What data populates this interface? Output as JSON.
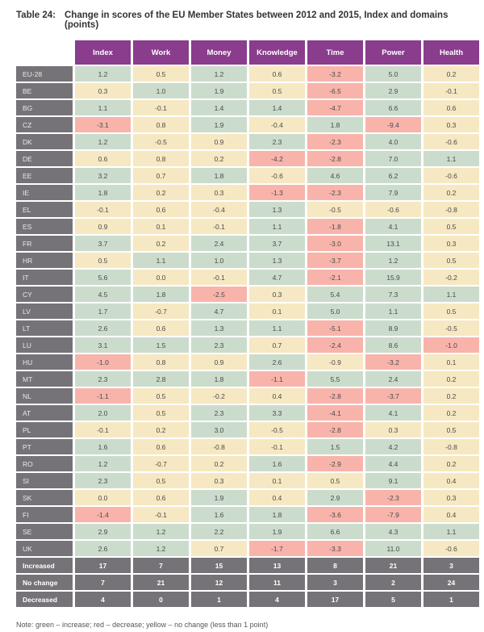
{
  "title": {
    "prefix": "Table 24:",
    "text": "Change in scores of the EU Member States between 2012 and 2015, Index and domains (points)"
  },
  "note": "Note: green – increase; red – decrease; yellow – no change (less than 1 point)",
  "legend": {
    "header_color": "#8a3c8d",
    "label_color": "#757378",
    "increase_color": "#cbdccd",
    "nochange_color": "#f6e8c2",
    "decrease_color": "#f8b4ab",
    "color_key": {
      "g": "increase (green)",
      "y": "no change (yellow)",
      "r": "decrease (red)"
    }
  },
  "chart_data": {
    "type": "table",
    "columns": [
      "Index",
      "Work",
      "Money",
      "Knowledge",
      "Time",
      "Power",
      "Health"
    ],
    "rows": [
      {
        "label": "EU-28",
        "values": [
          "1.2",
          "0.5",
          "1.2",
          "0.6",
          "-3.2",
          "5.0",
          "0.2"
        ],
        "colors": [
          "g",
          "y",
          "g",
          "y",
          "r",
          "g",
          "y"
        ]
      },
      {
        "label": "BE",
        "values": [
          "0.3",
          "1.0",
          "1.9",
          "0.5",
          "-6.5",
          "2.9",
          "-0.1"
        ],
        "colors": [
          "y",
          "g",
          "g",
          "y",
          "r",
          "g",
          "y"
        ]
      },
      {
        "label": "BG",
        "values": [
          "1.1",
          "-0.1",
          "1.4",
          "1.4",
          "-4.7",
          "6.6",
          "0.6"
        ],
        "colors": [
          "g",
          "y",
          "g",
          "g",
          "r",
          "g",
          "y"
        ]
      },
      {
        "label": "CZ",
        "values": [
          "-3.1",
          "0.8",
          "1.9",
          "-0.4",
          "1.8",
          "-9.4",
          "0.3"
        ],
        "colors": [
          "r",
          "y",
          "g",
          "y",
          "g",
          "r",
          "y"
        ]
      },
      {
        "label": "DK",
        "values": [
          "1.2",
          "-0.5",
          "0.9",
          "2.3",
          "-2.3",
          "4.0",
          "-0.6"
        ],
        "colors": [
          "g",
          "y",
          "y",
          "g",
          "r",
          "g",
          "y"
        ]
      },
      {
        "label": "DE",
        "values": [
          "0.6",
          "0.8",
          "0.2",
          "-4.2",
          "-2.8",
          "7.0",
          "1.1"
        ],
        "colors": [
          "y",
          "y",
          "y",
          "r",
          "r",
          "g",
          "g"
        ]
      },
      {
        "label": "EE",
        "values": [
          "3.2",
          "0.7",
          "1.8",
          "-0.6",
          "4.6",
          "6.2",
          "-0.6"
        ],
        "colors": [
          "g",
          "y",
          "g",
          "y",
          "g",
          "g",
          "y"
        ]
      },
      {
        "label": "IE",
        "values": [
          "1.8",
          "0.2",
          "0.3",
          "-1.3",
          "-2.3",
          "7.9",
          "0.2"
        ],
        "colors": [
          "g",
          "y",
          "y",
          "r",
          "r",
          "g",
          "y"
        ]
      },
      {
        "label": "EL",
        "values": [
          "-0.1",
          "0.6",
          "-0.4",
          "1.3",
          "-0.5",
          "-0.6",
          "-0.8"
        ],
        "colors": [
          "y",
          "y",
          "y",
          "g",
          "y",
          "y",
          "y"
        ]
      },
      {
        "label": "ES",
        "values": [
          "0.9",
          "0.1",
          "-0.1",
          "1.1",
          "-1.8",
          "4.1",
          "0.5"
        ],
        "colors": [
          "y",
          "y",
          "y",
          "g",
          "r",
          "g",
          "y"
        ]
      },
      {
        "label": "FR",
        "values": [
          "3.7",
          "0.2",
          "2.4",
          "3.7",
          "-3.0",
          "13.1",
          "0.3"
        ],
        "colors": [
          "g",
          "y",
          "g",
          "g",
          "r",
          "g",
          "y"
        ]
      },
      {
        "label": "HR",
        "values": [
          "0.5",
          "1.1",
          "1.0",
          "1.3",
          "-3.7",
          "1.2",
          "0.5"
        ],
        "colors": [
          "y",
          "g",
          "g",
          "g",
          "r",
          "g",
          "y"
        ]
      },
      {
        "label": "IT",
        "values": [
          "5.6",
          "0.0",
          "-0.1",
          "4.7",
          "-2.1",
          "15.9",
          "-0.2"
        ],
        "colors": [
          "g",
          "y",
          "y",
          "g",
          "r",
          "g",
          "y"
        ]
      },
      {
        "label": "CY",
        "values": [
          "4.5",
          "1.8",
          "-2.5",
          "0.3",
          "5.4",
          "7.3",
          "1.1"
        ],
        "colors": [
          "g",
          "g",
          "r",
          "y",
          "g",
          "g",
          "g"
        ]
      },
      {
        "label": "LV",
        "values": [
          "1.7",
          "-0.7",
          "4.7",
          "0.1",
          "5.0",
          "1.1",
          "0.5"
        ],
        "colors": [
          "g",
          "y",
          "g",
          "y",
          "g",
          "g",
          "y"
        ]
      },
      {
        "label": "LT",
        "values": [
          "2.6",
          "0.6",
          "1.3",
          "1.1",
          "-5.1",
          "8.9",
          "-0.5"
        ],
        "colors": [
          "g",
          "y",
          "g",
          "g",
          "r",
          "g",
          "y"
        ]
      },
      {
        "label": "LU",
        "values": [
          "3.1",
          "1.5",
          "2.3",
          "0.7",
          "-2.4",
          "8.6",
          "-1.0"
        ],
        "colors": [
          "g",
          "g",
          "g",
          "y",
          "r",
          "g",
          "r"
        ]
      },
      {
        "label": "HU",
        "values": [
          "-1.0",
          "0.8",
          "0.9",
          "2.6",
          "-0.9",
          "-3.2",
          "0.1"
        ],
        "colors": [
          "r",
          "y",
          "y",
          "g",
          "y",
          "r",
          "y"
        ]
      },
      {
        "label": "MT",
        "values": [
          "2.3",
          "2.8",
          "1.8",
          "-1.1",
          "5.5",
          "2.4",
          "0.2"
        ],
        "colors": [
          "g",
          "g",
          "g",
          "r",
          "g",
          "g",
          "y"
        ]
      },
      {
        "label": "NL",
        "values": [
          "-1.1",
          "0.5",
          "-0.2",
          "0.4",
          "-2.8",
          "-3.7",
          "0.2"
        ],
        "colors": [
          "r",
          "y",
          "y",
          "y",
          "r",
          "r",
          "y"
        ]
      },
      {
        "label": "AT",
        "values": [
          "2.0",
          "0.5",
          "2.3",
          "3.3",
          "-4.1",
          "4.1",
          "0.2"
        ],
        "colors": [
          "g",
          "y",
          "g",
          "g",
          "r",
          "g",
          "y"
        ]
      },
      {
        "label": "PL",
        "values": [
          "-0.1",
          "0.2",
          "3.0",
          "-0.5",
          "-2.8",
          "0.3",
          "0.5"
        ],
        "colors": [
          "y",
          "y",
          "g",
          "y",
          "r",
          "y",
          "y"
        ]
      },
      {
        "label": "PT",
        "values": [
          "1.6",
          "0.6",
          "-0.8",
          "-0.1",
          "1.5",
          "4.2",
          "-0.8"
        ],
        "colors": [
          "g",
          "y",
          "y",
          "y",
          "g",
          "g",
          "y"
        ]
      },
      {
        "label": "RO",
        "values": [
          "1.2",
          "-0.7",
          "0.2",
          "1.6",
          "-2.9",
          "4.4",
          "0.2"
        ],
        "colors": [
          "g",
          "y",
          "y",
          "g",
          "r",
          "g",
          "y"
        ]
      },
      {
        "label": "SI",
        "values": [
          "2.3",
          "0.5",
          "0.3",
          "0.1",
          "0.5",
          "9.1",
          "0.4"
        ],
        "colors": [
          "g",
          "y",
          "y",
          "y",
          "y",
          "g",
          "y"
        ]
      },
      {
        "label": "SK",
        "values": [
          "0.0",
          "0.6",
          "1.9",
          "0.4",
          "2.9",
          "-2.3",
          "0.3"
        ],
        "colors": [
          "y",
          "y",
          "g",
          "y",
          "g",
          "r",
          "y"
        ]
      },
      {
        "label": "FI",
        "values": [
          "-1.4",
          "-0.1",
          "1.6",
          "1.8",
          "-3.6",
          "-7.9",
          "0.4"
        ],
        "colors": [
          "r",
          "y",
          "g",
          "g",
          "r",
          "r",
          "y"
        ]
      },
      {
        "label": "SE",
        "values": [
          "2.9",
          "1.2",
          "2.2",
          "1.9",
          "6.6",
          "4.3",
          "1.1"
        ],
        "colors": [
          "g",
          "g",
          "g",
          "g",
          "g",
          "g",
          "g"
        ]
      },
      {
        "label": "UK",
        "values": [
          "2.6",
          "1.2",
          "0.7",
          "-1.7",
          "-3.3",
          "11.0",
          "-0.6"
        ],
        "colors": [
          "g",
          "g",
          "y",
          "r",
          "r",
          "g",
          "y"
        ]
      }
    ],
    "summary_rows": [
      {
        "label": "Increased",
        "values": [
          "17",
          "7",
          "15",
          "13",
          "8",
          "21",
          "3"
        ]
      },
      {
        "label": "No change",
        "values": [
          "7",
          "21",
          "12",
          "11",
          "3",
          "2",
          "24"
        ]
      },
      {
        "label": "Decreased",
        "values": [
          "4",
          "0",
          "1",
          "4",
          "17",
          "5",
          "1"
        ]
      }
    ]
  }
}
